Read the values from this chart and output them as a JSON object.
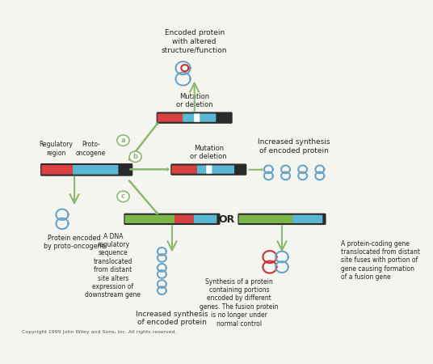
{
  "bg_color": "#f5f5f0",
  "title": "",
  "copyright": "Copyright 1999 John Wiley and Sons, Inc. All rights reserved.",
  "arrow_color": "#8db870",
  "arrow_color_small": "#8db870",
  "dna_colors": {
    "red": "#d94040",
    "blue": "#5bb8d4",
    "green": "#7ab648",
    "dark": "#2a2a2a",
    "white_mark": "#ffffff"
  },
  "protein_color": "#6ba3c8",
  "protein_red": "#cc3333",
  "text_color": "#222222",
  "labels": {
    "regulatory": "Regulatory\nregion",
    "proto": "Proto-\noncogene",
    "encoded_protein_altered": "Encoded protein\nwith altered\nstructure/function",
    "mutation_deletion_a": "Mutation\nor deletion",
    "mutation_deletion_b": "Mutation\nor deletion",
    "increased_synthesis": "Increased synthesis\nof encoded protein",
    "protein_encoded": "Protein encoded\nby proto-oncogene",
    "dna_regulatory": "A DNA\nregulatory\nsequence\ntranslocated\nfrom distant\nsite alters\nexpression of\ndownstream gene",
    "increased_synthesis_bottom": "Increased synthesis\nof encoded protein",
    "or_text": "OR",
    "synthesis_fusion": "Synthesis of a protein\ncontaining portions\nencoded by different\ngenes. The fusion protein\nis no longer under\nnormal control",
    "fusion_gene": "A protein-coding gene\ntranslocated from distant\nsite fuses with portion of\ngene causing formation\nof a fusion gene"
  },
  "circle_labels": {
    "a": "a",
    "b": "b",
    "c": "c"
  }
}
